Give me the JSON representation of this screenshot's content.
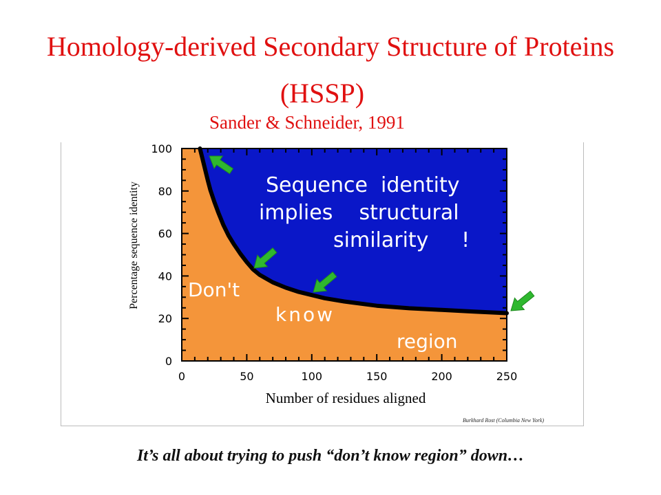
{
  "slide": {
    "title_line1": "Homology-derived Secondary Structure of Proteins",
    "title_line2": "(HSSP)",
    "subtitle": "Sander & Schneider, 1991",
    "footer": "It’s all about trying to push “don’t know region” down…",
    "credit": "Burkhard Rost (Columbia New York)"
  },
  "chart_data": {
    "type": "area",
    "xlabel": "Number of residues aligned",
    "ylabel": "Percentage sequence identity",
    "xlim": [
      0,
      250
    ],
    "ylim": [
      0,
      100
    ],
    "x_ticks": [
      0,
      50,
      100,
      150,
      200,
      250
    ],
    "y_ticks": [
      0,
      20,
      40,
      60,
      80,
      100
    ],
    "curve": {
      "x": [
        14,
        16,
        18,
        20,
        22,
        25,
        28,
        32,
        36,
        40,
        45,
        50,
        55,
        60,
        70,
        80,
        90,
        100,
        110,
        125,
        150,
        175,
        200,
        225,
        250
      ],
      "y": [
        100,
        95,
        90,
        85,
        80.5,
        75,
        70,
        64,
        59,
        55,
        50.5,
        46.5,
        43,
        40.5,
        37,
        34.5,
        32.5,
        31,
        29.5,
        28,
        26,
        24.8,
        24,
        23.2,
        22.5
      ]
    },
    "regions": [
      {
        "label": "Sequence identity implies structural similarity !",
        "color": "#0a17c8"
      },
      {
        "label": "Don't know region",
        "color": "#f4953a"
      }
    ],
    "grid": false
  },
  "annotations": {
    "upper_line1": "Sequence  identity",
    "upper_line2": "implies    structural",
    "upper_line3": "similarity     !",
    "lower_word1": "Don't",
    "lower_word2": "know",
    "lower_word3": "region"
  },
  "colors": {
    "title": "#e01010",
    "upper_region": "#0a17c8",
    "lower_region": "#f4953a",
    "arrow": "#2fb82f"
  }
}
